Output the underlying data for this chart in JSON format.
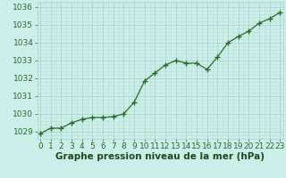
{
  "x": [
    0,
    1,
    2,
    3,
    4,
    5,
    6,
    7,
    8,
    9,
    10,
    11,
    12,
    13,
    14,
    15,
    16,
    17,
    18,
    19,
    20,
    21,
    22,
    23
  ],
  "y": [
    1028.9,
    1029.2,
    1029.2,
    1029.5,
    1029.7,
    1029.8,
    1029.8,
    1029.85,
    1030.0,
    1030.65,
    1031.85,
    1032.3,
    1032.75,
    1033.0,
    1032.85,
    1032.85,
    1032.5,
    1033.2,
    1034.0,
    1034.35,
    1034.65,
    1035.1,
    1035.35,
    1035.7
  ],
  "ylim": [
    1028.6,
    1036.3
  ],
  "yticks": [
    1029,
    1030,
    1031,
    1032,
    1033,
    1034,
    1035,
    1036
  ],
  "xlim": [
    -0.3,
    23.3
  ],
  "xticks": [
    0,
    1,
    2,
    3,
    4,
    5,
    6,
    7,
    8,
    9,
    10,
    11,
    12,
    13,
    14,
    15,
    16,
    17,
    18,
    19,
    20,
    21,
    22,
    23
  ],
  "line_color": "#2d6a2d",
  "marker": "+",
  "marker_size": 4,
  "bg_color": "#cceee8",
  "grid_major_color": "#aad4cc",
  "grid_minor_color": "#bbddd8",
  "xlabel": "Graphe pression niveau de la mer (hPa)",
  "xlabel_color": "#1a4a1a",
  "tick_color": "#2d6a2d",
  "label_fontsize": 6.5,
  "xlabel_fontsize": 7.5
}
